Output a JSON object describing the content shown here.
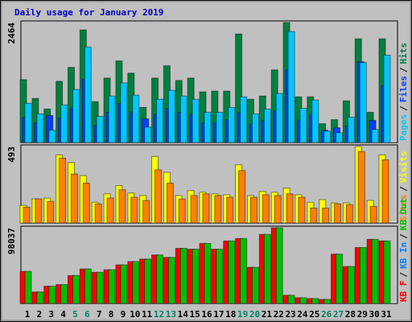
{
  "chart_data": [
    {
      "type": "bar",
      "title": "Daily usage for January 2019",
      "ylim": [
        0,
        2464
      ],
      "yticks": [
        2464
      ],
      "separator": "/",
      "legend_reversed": true,
      "series": [
        {
          "name": "Hits",
          "color": "#008040",
          "values": [
            1291,
            905,
            687,
            1257,
            1542,
            2313,
            838,
            1324,
            1676,
            1425,
            721,
            1324,
            1576,
            1274,
            1324,
            1039,
            1056,
            1056,
            2229,
            888,
            955,
            1492,
            2464,
            939,
            939,
            386,
            469,
            855,
            2129,
            620,
            2129
          ]
        },
        {
          "name": "Files",
          "color": "#0040ff",
          "values": [
            520,
            400,
            553,
            500,
            700,
            1300,
            350,
            620,
            800,
            630,
            486,
            580,
            700,
            620,
            580,
            400,
            400,
            470,
            610,
            380,
            450,
            650,
            1500,
            460,
            570,
            251,
            302,
            340,
            1660,
            453,
            1170
          ]
        },
        {
          "name": "Pages",
          "color": "#00c8ff",
          "values": [
            805,
            587,
            251,
            771,
            1090,
            1961,
            536,
            955,
            1224,
            972,
            318,
            888,
            1073,
            955,
            888,
            620,
            620,
            721,
            939,
            587,
            687,
            1006,
            2280,
            704,
            872,
            235,
            201,
            520,
            1643,
            268,
            1794
          ]
        }
      ]
    },
    {
      "type": "bar",
      "ylim": [
        0,
        493
      ],
      "yticks": [
        493
      ],
      "separator": "/",
      "legend_reversed": true,
      "series": [
        {
          "name": "Visits",
          "color": "#ffff00",
          "values": [
            113,
            155,
            161,
            439,
            391,
            305,
            134,
            188,
            241,
            193,
            177,
            429,
            327,
            177,
            209,
            198,
            188,
            182,
            375,
            177,
            204,
            198,
            225,
            182,
            134,
            150,
            129,
            129,
            493,
            145,
            439
          ]
        },
        {
          "name": "Sites",
          "color": "#ff8000",
          "values": [
            102,
            155,
            139,
            418,
            316,
            257,
            123,
            161,
            214,
            166,
            145,
            343,
            257,
            155,
            177,
            188,
            177,
            166,
            338,
            166,
            182,
            177,
            188,
            166,
            96,
            96,
            123,
            118,
            461,
            107,
            407
          ]
        }
      ]
    },
    {
      "type": "bar",
      "ylim": [
        0,
        98037
      ],
      "yticks": [
        98037
      ],
      "separator": "/",
      "legend_reversed": false,
      "categories": [
        "1",
        "2",
        "3",
        "4",
        "5",
        "6",
        "7",
        "8",
        "9",
        "10",
        "11",
        "12",
        "13",
        "14",
        "15",
        "16",
        "17",
        "18",
        "19",
        "20",
        "21",
        "22",
        "23",
        "24",
        "25",
        "26",
        "27",
        "28",
        "29",
        "30",
        "31"
      ],
      "category_colors": [
        "#000000",
        "#000000",
        "#000000",
        "#000000",
        "#008060",
        "#008060",
        "#000000",
        "#000000",
        "#000000",
        "#000000",
        "#000000",
        "#008060",
        "#008060",
        "#000000",
        "#000000",
        "#000000",
        "#000000",
        "#000000",
        "#008060",
        "#008060",
        "#000000",
        "#000000",
        "#000000",
        "#000000",
        "#000000",
        "#008060",
        "#008060",
        "#000000",
        "#000000",
        "#000000",
        "#000000"
      ],
      "series": [
        {
          "name": "KB F",
          "color": "#ff0000",
          "values": [
            41560,
            14919,
            22378,
            24510,
            36231,
            44756,
            40493,
            43690,
            50085,
            54347,
            57544,
            62872,
            59675,
            71397,
            70332,
            77791,
            70332,
            80988,
            84185,
            46888,
            89513,
            98037,
            10656,
            7459,
            6394,
            5328,
            63938,
            47953,
            72462,
            83120,
            80988
          ]
        },
        {
          "name": "KB In",
          "color": "#0080ff",
          "values": [
            0,
            0,
            0,
            0,
            0,
            0,
            0,
            0,
            0,
            0,
            0,
            0,
            0,
            0,
            0,
            0,
            0,
            0,
            0,
            0,
            0,
            0,
            0,
            0,
            0,
            0,
            0,
            0,
            0,
            0,
            0
          ]
        },
        {
          "name": "KB Out",
          "color": "#00c000",
          "values": [
            41560,
            14919,
            22378,
            24510,
            36231,
            44756,
            40493,
            43690,
            50085,
            54347,
            57544,
            62872,
            59675,
            71397,
            70332,
            77791,
            70332,
            80988,
            84185,
            46888,
            89513,
            98037,
            10656,
            7459,
            6394,
            5328,
            63938,
            47953,
            72462,
            83120,
            80988
          ]
        }
      ]
    }
  ]
}
